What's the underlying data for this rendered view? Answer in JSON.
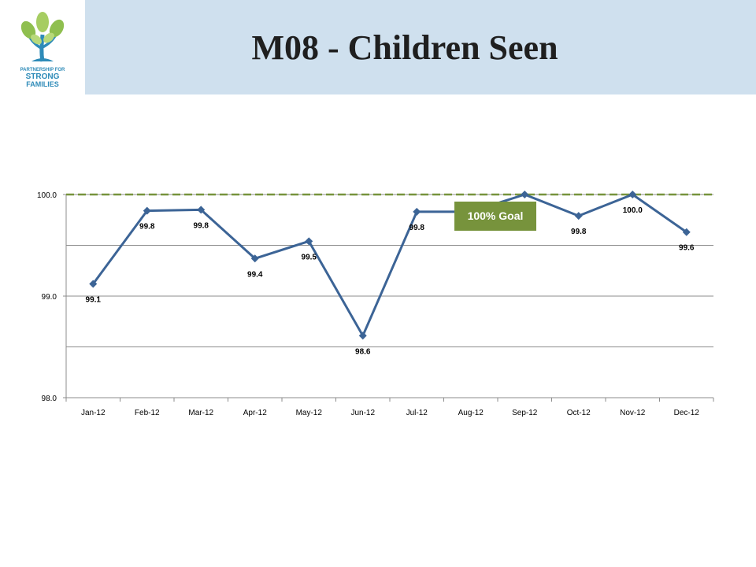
{
  "header": {
    "title": "M08 - Children Seen",
    "logo": {
      "icon": "tree-logo-icon",
      "line1": "PARTNERSHIP FOR",
      "line2": "STRONG",
      "line3": "FAMILIES",
      "color": "#2e8bb8"
    }
  },
  "chart_data": {
    "type": "line",
    "title": "",
    "xlabel": "",
    "ylabel": "",
    "categories": [
      "Jan-12",
      "Feb-12",
      "Mar-12",
      "Apr-12",
      "May-12",
      "Jun-12",
      "Jul-12",
      "Aug-12",
      "Sep-12",
      "Oct-12",
      "Nov-12",
      "Dec-12"
    ],
    "series": [
      {
        "values": [
          99.12,
          99.84,
          99.85,
          99.37,
          99.54,
          98.61,
          99.83,
          99.83,
          100.0,
          99.79,
          100.0,
          99.63
        ],
        "labels": [
          "99.1",
          "99.8",
          "99.8",
          "99.4",
          "99.5",
          "98.6",
          "99.8",
          "",
          "",
          "99.8",
          "100.0",
          "99.6"
        ],
        "color": "#3c6496"
      }
    ],
    "goal": {
      "value": 100.0,
      "label": "100% Goal",
      "line_color": "#77933c",
      "box_color": "#77933c"
    },
    "ylim": [
      98.0,
      100.0
    ],
    "yticks": [
      "98.0",
      "99.0",
      "100.0"
    ],
    "grid": true,
    "legend": "none"
  }
}
